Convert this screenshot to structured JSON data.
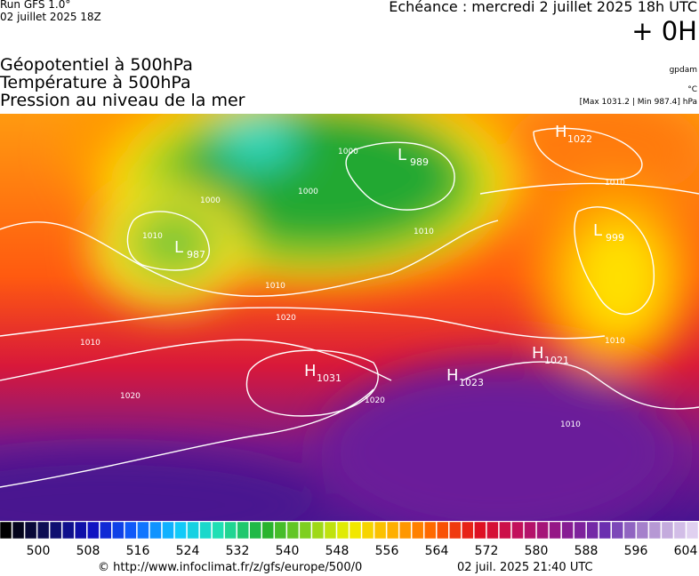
{
  "header": {
    "run": "Run GFS 1.0°",
    "run_date": "02 juillet 2025 18Z",
    "echeance": "Echéance : mercredi 2 juillet 2025 18h UTC",
    "offset": "+ 0H",
    "fields": [
      "Géopotentiel à 500hPa",
      "Température à 500hPa",
      "Pression au niveau de la mer"
    ],
    "units": [
      "gpdam",
      "°C"
    ],
    "extremes": "[Max 1031.2 | Min 987.4] hPa"
  },
  "map": {
    "centers": [
      {
        "letter": "L",
        "value": "989"
      },
      {
        "letter": "L",
        "value": "987"
      },
      {
        "letter": "L",
        "value": "999"
      },
      {
        "letter": "H",
        "value": "1031"
      },
      {
        "letter": "H",
        "value": "1023"
      },
      {
        "letter": "H",
        "value": "1021"
      },
      {
        "letter": "H",
        "value": "1022"
      }
    ],
    "isobar_labels": [
      "1000",
      "1000",
      "1000",
      "1010",
      "1010",
      "1010",
      "1020",
      "1010",
      "1020",
      "1020",
      "1010",
      "1010",
      "1010"
    ]
  },
  "colorbar": {
    "ticks": [
      500,
      508,
      516,
      524,
      532,
      540,
      548,
      556,
      564,
      572,
      580,
      588,
      596,
      604
    ]
  },
  "footer": {
    "url": "© http://www.infoclimat.fr/z/gfs/europe/500/0",
    "time": "02 juil. 2025 21:40 UTC"
  }
}
